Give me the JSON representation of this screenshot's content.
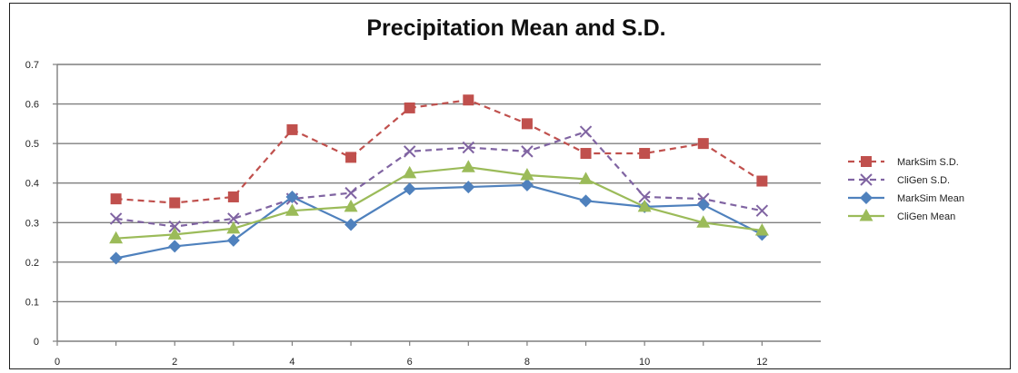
{
  "chart_data": {
    "type": "line",
    "title": "Precipitation Mean and S.D.",
    "xlabel": "",
    "ylabel": "",
    "xlim": [
      0,
      13
    ],
    "ylim": [
      0,
      0.7
    ],
    "xticks": [
      0,
      2,
      4,
      6,
      8,
      10,
      12
    ],
    "yticks": [
      0,
      0.1,
      0.2,
      0.3,
      0.4,
      0.5,
      0.6,
      0.7
    ],
    "grid": "horizontal",
    "legend_position": "right",
    "x": [
      1,
      2,
      3,
      4,
      5,
      6,
      7,
      8,
      9,
      10,
      11,
      12
    ],
    "series": [
      {
        "name": "MarkSim S.D.",
        "color": "#c0504d",
        "dash": "dashed",
        "marker": "square",
        "values": [
          0.36,
          0.35,
          0.365,
          0.535,
          0.465,
          0.59,
          0.61,
          0.55,
          0.475,
          0.475,
          0.5,
          0.405
        ]
      },
      {
        "name": "CliGen S.D.",
        "color": "#8064a2",
        "dash": "dashed",
        "marker": "cross",
        "values": [
          0.31,
          0.29,
          0.31,
          0.36,
          0.375,
          0.48,
          0.49,
          0.48,
          0.53,
          0.365,
          0.36,
          0.33
        ]
      },
      {
        "name": "MarkSim Mean",
        "color": "#4f81bd",
        "dash": "solid",
        "marker": "diamond",
        "values": [
          0.21,
          0.24,
          0.255,
          0.365,
          0.295,
          0.385,
          0.39,
          0.395,
          0.355,
          0.34,
          0.345,
          0.27
        ]
      },
      {
        "name": "CliGen Mean",
        "color": "#9bbb59",
        "dash": "solid",
        "marker": "triangle",
        "values": [
          0.26,
          0.27,
          0.285,
          0.33,
          0.34,
          0.425,
          0.44,
          0.42,
          0.41,
          0.34,
          0.3,
          0.28
        ]
      }
    ]
  }
}
